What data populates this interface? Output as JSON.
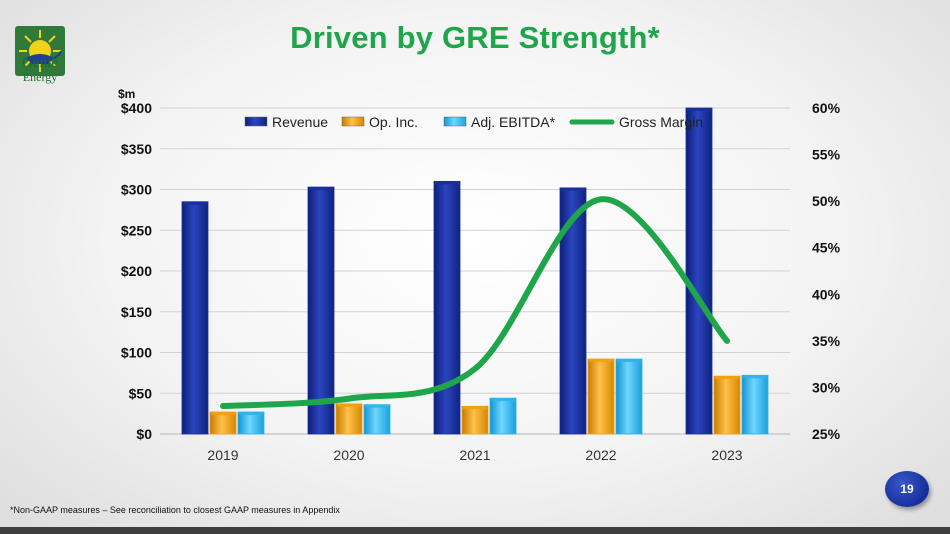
{
  "brand": {
    "line1": "Genie",
    "line2": "Energy"
  },
  "slide_title": "Driven by GRE Strength*",
  "footnote": "*Non-GAAP measures – See reconciliation to closest GAAP measures in Appendix",
  "page_number": "19",
  "colors": {
    "revenue": "#1a2f9c",
    "op_inc": "#f2a00f",
    "adj_ebitda": "#2bb4ec",
    "gross_margin": "#1fa64a",
    "title": "#1fa64a"
  },
  "chart_data": {
    "type": "bar",
    "title": "Driven by GRE Strength*",
    "ylabel": "$m",
    "categories": [
      "2019",
      "2020",
      "2021",
      "2022",
      "2023"
    ],
    "ylim": [
      0,
      400
    ],
    "y_ticks": [
      "$0",
      "$50",
      "$100",
      "$150",
      "$200",
      "$250",
      "$300",
      "$350",
      "$400"
    ],
    "y2lim": [
      25,
      60
    ],
    "y2_ticks": [
      "25%",
      "30%",
      "35%",
      "40%",
      "45%",
      "50%",
      "55%",
      "60%"
    ],
    "grid": true,
    "legend_position": "top",
    "series": [
      {
        "name": "Revenue",
        "type": "bar",
        "axis": "left",
        "values": [
          285,
          303,
          310,
          302,
          400
        ]
      },
      {
        "name": "Op. Inc.",
        "type": "bar",
        "axis": "left",
        "values": [
          27,
          37,
          34,
          92,
          71
        ]
      },
      {
        "name": "Adj. EBITDA*",
        "type": "bar",
        "axis": "left",
        "values": [
          27,
          36,
          44,
          92,
          72
        ]
      },
      {
        "name": "Gross Margin",
        "type": "line",
        "axis": "right",
        "values": [
          28,
          28.8,
          32,
          50.2,
          35
        ]
      }
    ]
  }
}
